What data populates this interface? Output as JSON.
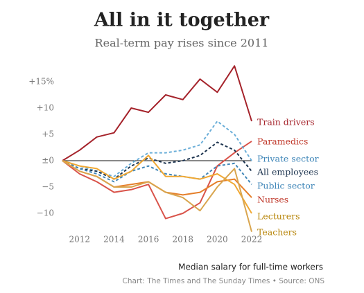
{
  "chart_data": {
    "type": "line",
    "title": "All in it together",
    "subtitle": "Real-term pay rises since 2011",
    "x": [
      2011,
      2012,
      2013,
      2014,
      2015,
      2016,
      2017,
      2018,
      2019,
      2020,
      2021,
      2022
    ],
    "xlim": [
      2011,
      2022
    ],
    "xticks": [
      2012,
      2014,
      2016,
      2018,
      2020,
      2022
    ],
    "ylim": [
      -15,
      19
    ],
    "yticks": [
      {
        "value": 15,
        "label": "+15%"
      },
      {
        "value": 10,
        "label": "+10"
      },
      {
        "value": 5,
        "label": "+5"
      },
      {
        "value": 0,
        "label": "±0"
      },
      {
        "value": -5,
        "label": "−5"
      },
      {
        "value": -10,
        "label": "−10"
      }
    ],
    "series": [
      {
        "name": "Train drivers",
        "color": "#a5232b",
        "dashed": false,
        "values": [
          0,
          2,
          4.5,
          5.3,
          10,
          9.2,
          12.5,
          11.6,
          15.5,
          13,
          18,
          7.5
        ]
      },
      {
        "name": "Paramedics",
        "color": "#d9534a",
        "dashed": false,
        "values": [
          0,
          -2.5,
          -4,
          -6,
          -5.5,
          -4.5,
          -11,
          -10,
          -8,
          -1,
          1.5,
          3.7
        ]
      },
      {
        "name": "Private sector",
        "color": "#6aaed8",
        "dashed": true,
        "values": [
          0,
          -1,
          -2,
          -3,
          -0.5,
          1.5,
          1.5,
          2,
          3,
          7.5,
          5,
          0
        ]
      },
      {
        "name": "All employees",
        "color": "#1e3550",
        "dashed": true,
        "values": [
          0,
          -1.5,
          -2,
          -3.5,
          -1,
          0.5,
          -0.5,
          0,
          1,
          3.5,
          2,
          -2
        ]
      },
      {
        "name": "Public sector",
        "color": "#3f86b8",
        "dashed": true,
        "values": [
          0,
          -1.5,
          -2.5,
          -4,
          -2,
          -1,
          -2.5,
          -3,
          -3.5,
          -1,
          -0.5,
          -4.5
        ]
      },
      {
        "name": "Nurses",
        "color": "#e57f2a",
        "dashed": false,
        "values": [
          0,
          -2,
          -3,
          -5,
          -4.5,
          -4,
          -6,
          -6.5,
          -6,
          -4,
          -3.5,
          -7
        ]
      },
      {
        "name": "Lecturers",
        "color": "#f0a833",
        "dashed": false,
        "values": [
          0,
          -1,
          -1.5,
          -3.5,
          -2,
          1,
          -3,
          -3,
          -3.5,
          -2.5,
          -4.5,
          -10
        ]
      },
      {
        "name": "Teachers",
        "color": "#d9a54e",
        "dashed": false,
        "values": [
          0,
          -2,
          -3,
          -5,
          -5,
          -4,
          -6,
          -7,
          -9.5,
          -5,
          -1.5,
          -13.5
        ]
      }
    ],
    "legend_text_colors": [
      "#a5232b",
      "#c0392b",
      "#3f86b8",
      "#1e3550",
      "#3f86b8",
      "#c0392b",
      "#b8860b",
      "#b8860b"
    ],
    "note": "Median salary for full-time workers",
    "source": "Chart: The Times and The Sunday Times • Source: ONS"
  }
}
